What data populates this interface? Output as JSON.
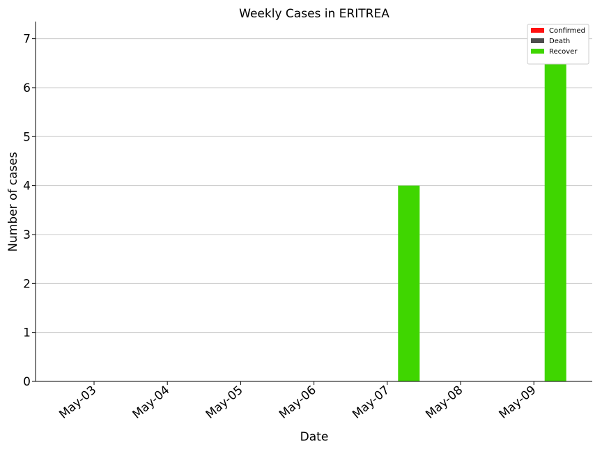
{
  "chart_data": {
    "type": "bar",
    "title": "Weekly Cases in ERITREA",
    "xlabel": "Date",
    "ylabel": "Number of cases",
    "categories": [
      "May-03",
      "May-04",
      "May-05",
      "May-06",
      "May-07",
      "May-08",
      "May-09"
    ],
    "series": [
      {
        "name": "Confirmed",
        "color": "#ff1010",
        "values": [
          0,
          0,
          0,
          0,
          0,
          0,
          0
        ]
      },
      {
        "name": "Death",
        "color": "#4d4d4d",
        "values": [
          0,
          0,
          0,
          0,
          0,
          0,
          0
        ]
      },
      {
        "name": "Recover",
        "color": "#3fd600",
        "values": [
          0,
          0,
          0,
          0,
          4,
          0,
          7
        ]
      }
    ],
    "ylim": [
      0,
      7.35
    ],
    "yticks": [
      0,
      1,
      2,
      3,
      4,
      5,
      6,
      7
    ],
    "grid": "horizontal",
    "legend_position": "top-right"
  }
}
